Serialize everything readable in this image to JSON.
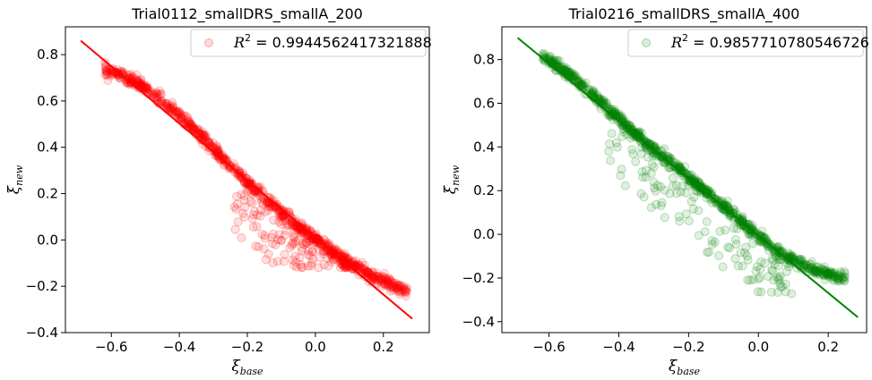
{
  "chart_data": [
    {
      "type": "scatter",
      "title": "Trial0112_smallDRS_smallA_200",
      "xlabel": "ξ",
      "xlabel_sub": "base",
      "ylabel": "ξ",
      "ylabel_sub": "new",
      "xlim": [
        -0.735,
        0.335
      ],
      "ylim": [
        -0.4,
        0.92
      ],
      "xticks": [
        -0.6,
        -0.4,
        -0.2,
        0.0,
        0.2
      ],
      "xtick_labels": [
        "−0.6",
        "−0.4",
        "−0.2",
        "0.0",
        "0.2"
      ],
      "yticks": [
        -0.4,
        -0.2,
        0.0,
        0.2,
        0.4,
        0.6,
        0.8
      ],
      "ytick_labels": [
        "−0.4",
        "−0.2",
        "0.0",
        "0.2",
        "0.4",
        "0.6",
        "0.8"
      ],
      "legend_position": "top-right",
      "series": [
        {
          "legend_label_prefix": "R",
          "legend_label_sup": "2",
          "legend_label_value": " = 0.9944562417321888",
          "color": "#ff0000",
          "fit_line": {
            "x": [
              -0.69,
              0.285
            ],
            "y": [
              0.86,
              -0.34
            ]
          },
          "scatter_trend": [
            [
              -0.62,
              0.735
            ],
            [
              -0.56,
              0.705
            ],
            [
              -0.5,
              0.655
            ],
            [
              -0.44,
              0.585
            ],
            [
              -0.38,
              0.51
            ],
            [
              -0.32,
              0.425
            ],
            [
              -0.26,
              0.33
            ],
            [
              -0.2,
              0.25
            ],
            [
              -0.14,
              0.17
            ],
            [
              -0.08,
              0.095
            ],
            [
              -0.02,
              0.03
            ],
            [
              0.04,
              -0.04
            ],
            [
              0.1,
              -0.1
            ],
            [
              0.16,
              -0.15
            ],
            [
              0.22,
              -0.19
            ],
            [
              0.27,
              -0.22
            ]
          ],
          "outliers_region": {
            "x": [
              -0.24,
              0.1
            ],
            "y": [
              -0.12,
              0.18
            ]
          }
        }
      ]
    },
    {
      "type": "scatter",
      "title": "Trial0216_smallDRS_smallA_400",
      "xlabel": "ξ",
      "xlabel_sub": "base",
      "ylabel": "ξ",
      "ylabel_sub": "new",
      "xlim": [
        -0.735,
        0.31
      ],
      "ylim": [
        -0.45,
        0.95
      ],
      "xticks": [
        -0.6,
        -0.4,
        -0.2,
        0.0,
        0.2
      ],
      "xtick_labels": [
        "−0.6",
        "−0.4",
        "−0.2",
        "0.0",
        "0.2"
      ],
      "yticks": [
        -0.4,
        -0.2,
        0.0,
        0.2,
        0.4,
        0.6,
        0.8
      ],
      "ytick_labels": [
        "−0.4",
        "−0.2",
        "0.0",
        "0.2",
        "0.4",
        "0.6",
        "0.8"
      ],
      "legend_position": "top-right",
      "series": [
        {
          "legend_label_prefix": "R",
          "legend_label_sup": "2",
          "legend_label_value": " = 0.9857710780546726",
          "color": "#008000",
          "fit_line": {
            "x": [
              -0.69,
              0.285
            ],
            "y": [
              0.9,
              -0.38
            ]
          },
          "scatter_trend": [
            [
              -0.62,
              0.815
            ],
            [
              -0.56,
              0.755
            ],
            [
              -0.5,
              0.675
            ],
            [
              -0.44,
              0.59
            ],
            [
              -0.38,
              0.5
            ],
            [
              -0.32,
              0.415
            ],
            [
              -0.26,
              0.34
            ],
            [
              -0.2,
              0.265
            ],
            [
              -0.14,
              0.18
            ],
            [
              -0.08,
              0.1
            ],
            [
              -0.02,
              0.02
            ],
            [
              0.04,
              -0.06
            ],
            [
              0.1,
              -0.12
            ],
            [
              0.16,
              -0.165
            ],
            [
              0.22,
              -0.19
            ],
            [
              0.25,
              -0.2
            ]
          ],
          "outliers_region": {
            "x": [
              -0.44,
              0.1
            ],
            "y": [
              -0.28,
              0.34
            ]
          }
        }
      ]
    }
  ]
}
